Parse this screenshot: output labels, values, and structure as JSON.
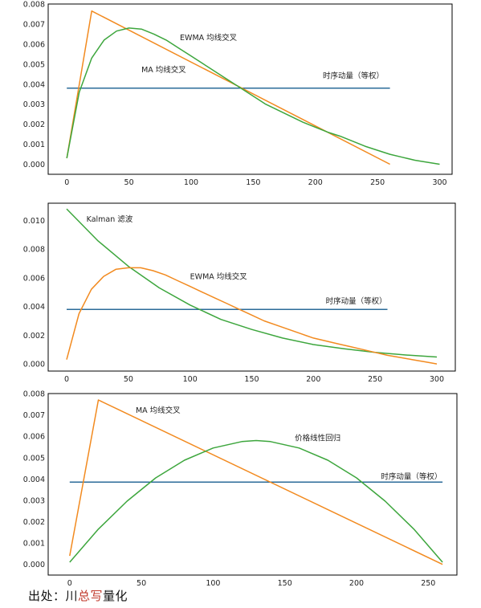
{
  "chart_data": [
    {
      "type": "line",
      "xlim": [
        -15,
        310
      ],
      "ylim": [
        -0.0005,
        0.008
      ],
      "xticks": [
        "0",
        "50",
        "100",
        "150",
        "200",
        "250",
        "300"
      ],
      "yticks": [
        "0.000",
        "0.001",
        "0.002",
        "0.003",
        "0.004",
        "0.005",
        "0.006",
        "0.007",
        "0.008"
      ],
      "series": [
        {
          "name": "时序动量（等权）",
          "color": "#2b6b99",
          "x": [
            0,
            260
          ],
          "y": [
            0.0038,
            0.0038
          ]
        },
        {
          "name": "MA 均线交叉",
          "color": "#f28a1f",
          "x": [
            0,
            20,
            260
          ],
          "y": [
            0.0003,
            0.00765,
            0.0
          ]
        },
        {
          "name": "EWMA 均线交叉",
          "color": "#3da63d",
          "x": [
            0,
            10,
            20,
            30,
            40,
            50,
            60,
            70,
            80,
            90,
            100,
            110,
            120,
            130,
            140,
            150,
            160,
            170,
            180,
            190,
            200,
            210,
            220,
            230,
            240,
            250,
            260,
            270,
            280,
            290,
            300
          ],
          "y": [
            0.0003,
            0.0036,
            0.0053,
            0.0062,
            0.00665,
            0.0068,
            0.00675,
            0.0065,
            0.0062,
            0.0058,
            0.0054,
            0.005,
            0.0046,
            0.0042,
            0.0038,
            0.0034,
            0.003,
            0.0027,
            0.0024,
            0.0021,
            0.00185,
            0.0016,
            0.0014,
            0.00115,
            0.0009,
            0.0007,
            0.0005,
            0.00035,
            0.0002,
            0.0001,
            0.0
          ]
        }
      ],
      "annotations": [
        {
          "text": "EWMA 均线交叉",
          "x": 91,
          "y": 0.0062
        },
        {
          "text": "MA 均线交叉",
          "x": 60,
          "y": 0.0046
        },
        {
          "text": "时序动量（等权）",
          "x": 206,
          "y": 0.0043
        }
      ]
    },
    {
      "type": "line",
      "xlim": [
        -15,
        315
      ],
      "ylim": [
        -0.0005,
        0.0112
      ],
      "xticks": [
        "0",
        "50",
        "100",
        "150",
        "200",
        "250",
        "300"
      ],
      "yticks": [
        "0.000",
        "0.002",
        "0.004",
        "0.006",
        "0.008",
        "0.010"
      ],
      "series": [
        {
          "name": "时序动量（等权）",
          "color": "#2b6b99",
          "x": [
            0,
            260
          ],
          "y": [
            0.0038,
            0.0038
          ]
        },
        {
          "name": "Kalman 滤波",
          "color": "#3da63d",
          "x": [
            0,
            25,
            50,
            75,
            100,
            125,
            150,
            175,
            200,
            225,
            250,
            275,
            300
          ],
          "y": [
            0.0108,
            0.0086,
            0.0068,
            0.0053,
            0.0041,
            0.0031,
            0.0024,
            0.0018,
            0.00135,
            0.00105,
            0.0008,
            0.00062,
            0.00048
          ]
        },
        {
          "name": "EWMA 均线交叉",
          "color": "#f28a1f",
          "x": [
            0,
            10,
            20,
            30,
            40,
            50,
            60,
            70,
            80,
            90,
            100,
            110,
            120,
            130,
            140,
            150,
            160,
            170,
            180,
            190,
            200,
            210,
            220,
            230,
            240,
            250,
            260,
            270,
            280,
            290,
            300
          ],
          "y": [
            0.0003,
            0.0035,
            0.0052,
            0.0061,
            0.0066,
            0.0067,
            0.0067,
            0.0065,
            0.0062,
            0.0058,
            0.0054,
            0.005,
            0.0046,
            0.0042,
            0.0038,
            0.0034,
            0.003,
            0.0027,
            0.0024,
            0.0021,
            0.0018,
            0.0016,
            0.0014,
            0.0012,
            0.001,
            0.0008,
            0.0006,
            0.00045,
            0.0003,
            0.00015,
            0.0
          ]
        }
      ],
      "annotations": [
        {
          "text": "Kalman 滤波",
          "x": 16,
          "y": 0.0099
        },
        {
          "text": "EWMA 均线交叉",
          "x": 100,
          "y": 0.0059
        },
        {
          "text": "时序动量（等权）",
          "x": 210,
          "y": 0.0042
        }
      ]
    },
    {
      "type": "line",
      "xlim": [
        -15,
        270
      ],
      "ylim": [
        -0.0005,
        0.008
      ],
      "xticks": [
        "0",
        "50",
        "100",
        "150",
        "200",
        "250"
      ],
      "yticks": [
        "0.000",
        "0.001",
        "0.002",
        "0.003",
        "0.004",
        "0.005",
        "0.006",
        "0.007",
        "0.008"
      ],
      "series": [
        {
          "name": "时序动量（等权）",
          "color": "#2b6b99",
          "x": [
            0,
            260
          ],
          "y": [
            0.00385,
            0.00385
          ]
        },
        {
          "name": "MA 均线交叉",
          "color": "#f28a1f",
          "x": [
            0,
            20,
            260
          ],
          "y": [
            0.0004,
            0.0077,
            0.0
          ]
        },
        {
          "name": "价格线性回归",
          "color": "#3da63d",
          "x": [
            0,
            20,
            40,
            60,
            80,
            100,
            120,
            130,
            140,
            160,
            180,
            200,
            220,
            240,
            260
          ],
          "y": [
            0.0001,
            0.00165,
            0.00296,
            0.00405,
            0.00488,
            0.00545,
            0.00575,
            0.0058,
            0.00575,
            0.00545,
            0.00488,
            0.00405,
            0.00296,
            0.00165,
            0.0001
          ]
        }
      ],
      "annotations": [
        {
          "text": "MA 均线交叉",
          "x": 46,
          "y": 0.0071
        },
        {
          "text": "价格线性回归",
          "x": 157,
          "y": 0.0058
        },
        {
          "text": "时序动量（等权）",
          "x": 217,
          "y": 0.004
        }
      ]
    }
  ],
  "source": {
    "prefix": "出处：",
    "name_plain1": "川",
    "name_highlight": "总写",
    "name_plain2": "量化"
  }
}
